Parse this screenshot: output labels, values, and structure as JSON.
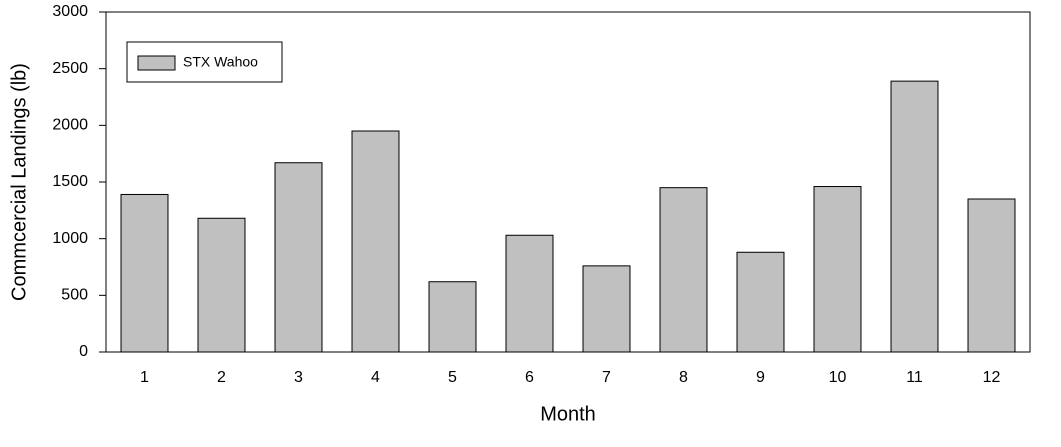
{
  "chart_data": {
    "type": "bar",
    "x_label": "Month",
    "y_label": "Commcercial Landings (lb)",
    "categories": [
      "1",
      "2",
      "3",
      "4",
      "5",
      "6",
      "7",
      "8",
      "9",
      "10",
      "11",
      "12"
    ],
    "series": [
      {
        "name": "STX Wahoo",
        "color": "#c0c0c0",
        "values": [
          1390,
          1180,
          1670,
          1950,
          620,
          1030,
          760,
          1450,
          880,
          1460,
          2390,
          1350
        ]
      }
    ],
    "ylim": [
      0,
      3000
    ],
    "yticks": [
      0,
      500,
      1000,
      1500,
      2000,
      2500,
      3000
    ],
    "legend": "upper left"
  }
}
